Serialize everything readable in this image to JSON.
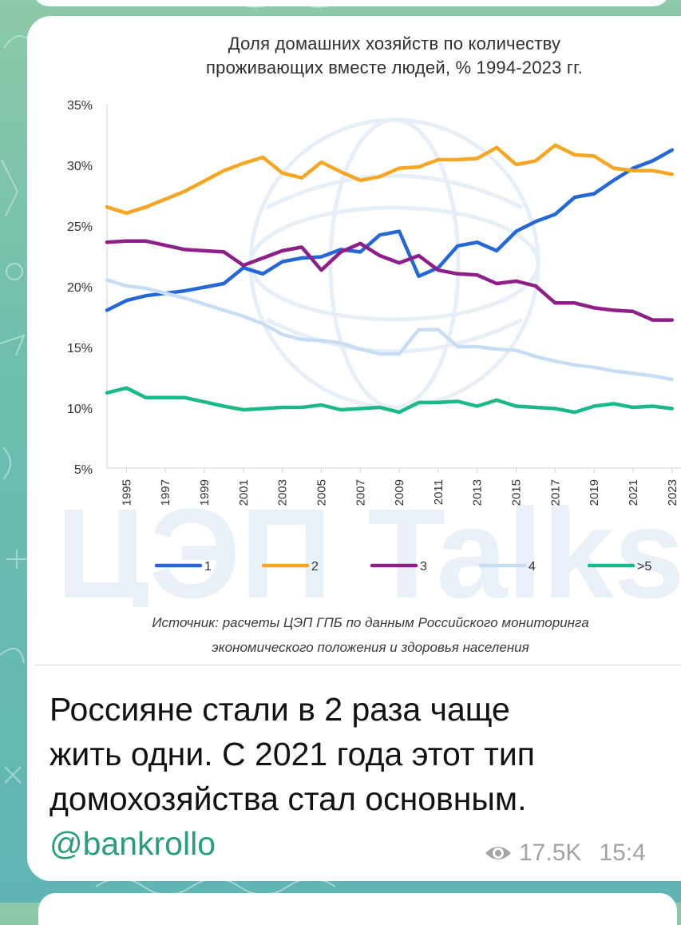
{
  "post": {
    "text_lines": [
      "Россияне стали в 2 раза чаще",
      "жить одни. С 2021 года этот тип",
      "домохозяйства стал основным."
    ],
    "mention": "@bankrollo",
    "views": "17.5K",
    "time": "15:4"
  },
  "chart": {
    "watermark": "ЦЭП Talks",
    "source_lines": [
      "Источник: расчеты ЦЭП ГПБ по данным Российского мониторинга",
      "экономического положения и здоровья населения"
    ]
  },
  "chart_data": {
    "type": "line",
    "title_lines": [
      "Доля домашних хозяйств по количеству",
      "проживающих вместе людей, % 1994-2023 гг."
    ],
    "xlabel": "",
    "ylabel": "",
    "ylim": [
      5,
      35
    ],
    "y_ticks": [
      "35%",
      "30%",
      "25%",
      "20%",
      "15%",
      "10%",
      "5%"
    ],
    "x_ticks": [
      "1995",
      "1997",
      "1999",
      "2001",
      "2003",
      "2005",
      "2007",
      "2009",
      "2011",
      "2013",
      "2015",
      "2017",
      "2019",
      "2021",
      "2023"
    ],
    "x": [
      1994,
      1995,
      1996,
      1998,
      2000,
      2001,
      2002,
      2003,
      2004,
      2005,
      2006,
      2007,
      2008,
      2009,
      2010,
      2011,
      2012,
      2013,
      2014,
      2015,
      2016,
      2017,
      2018,
      2019,
      2020,
      2021,
      2022,
      2023
    ],
    "grid": false,
    "legend_position": "bottom",
    "series": [
      {
        "name": "1",
        "color": "#2567d6",
        "values": [
          18.0,
          18.8,
          19.2,
          19.6,
          20.2,
          21.5,
          21.0,
          22.0,
          22.3,
          22.4,
          23.0,
          22.8,
          24.2,
          24.5,
          20.8,
          21.5,
          23.3,
          23.6,
          22.9,
          24.5,
          25.3,
          25.9,
          27.3,
          27.6,
          28.7,
          29.7,
          30.3,
          31.2
        ]
      },
      {
        "name": "2",
        "color": "#f5a623",
        "values": [
          26.5,
          26.0,
          26.5,
          27.8,
          29.5,
          30.1,
          30.6,
          29.3,
          28.9,
          30.2,
          29.4,
          28.7,
          29.0,
          29.7,
          29.8,
          30.4,
          30.4,
          30.5,
          31.4,
          30.0,
          30.3,
          31.6,
          30.8,
          30.7,
          29.7,
          29.5,
          29.5,
          29.2
        ]
      },
      {
        "name": "3",
        "color": "#8e1f88",
        "values": [
          23.6,
          23.7,
          23.7,
          23.0,
          22.8,
          21.7,
          22.3,
          22.9,
          23.2,
          21.3,
          22.8,
          23.5,
          22.5,
          21.9,
          22.5,
          21.3,
          21.0,
          20.9,
          20.2,
          20.4,
          20.0,
          18.6,
          18.6,
          18.2,
          18.0,
          17.9,
          17.2,
          17.2
        ]
      },
      {
        "name": "4",
        "color": "#c7ddf4",
        "values": [
          20.5,
          20.0,
          19.8,
          19.0,
          18.0,
          17.5,
          16.9,
          16.0,
          15.6,
          15.5,
          15.3,
          14.8,
          14.4,
          14.4,
          16.4,
          16.4,
          15.0,
          15.0,
          14.8,
          14.7,
          14.2,
          13.8,
          13.5,
          13.3,
          13.0,
          12.8,
          12.6,
          12.3
        ]
      },
      {
        "name": ">5",
        "color": "#1bb98a",
        "values": [
          11.2,
          11.6,
          10.8,
          10.8,
          10.1,
          9.8,
          9.9,
          10.0,
          10.0,
          10.2,
          9.8,
          9.9,
          10.0,
          9.6,
          10.4,
          10.4,
          10.5,
          10.1,
          10.6,
          10.1,
          10.0,
          9.9,
          9.6,
          10.1,
          10.3,
          10.0,
          10.1,
          9.9
        ]
      }
    ]
  }
}
